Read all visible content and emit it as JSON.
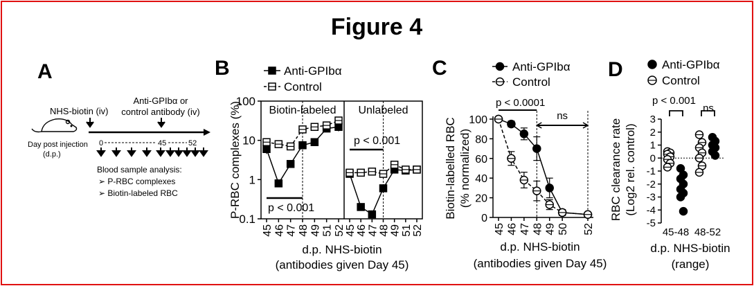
{
  "figure_title": "Figure 4",
  "panel_a": {
    "letter": "A",
    "nhs_label": "NHS-biotin (iv)",
    "antibody_label_1": "Anti-GPIbα or",
    "antibody_label_2": "control antibody (iv)",
    "day_label": "Day post injection",
    "day_label_abbrev": "(d.p.)",
    "tick_0": "0",
    "tick_45": "45",
    "tick_52": "52",
    "analysis_title": "Blood sample analysis:",
    "analysis_item_1": "➢ P-RBC complexes",
    "analysis_item_2": "➢ Biotin-labeled RBC"
  },
  "chart_data": [
    {
      "panel": "B",
      "type": "line",
      "ylabel": "P-RBC complexes (%)",
      "xlabel": "d.p. NHS-biotin",
      "xlabel_sub": "(antibodies given Day 45)",
      "yscale": "log",
      "ylim": [
        0.1,
        100
      ],
      "yticks": [
        "0.1",
        "1",
        "10",
        "100"
      ],
      "legend": [
        "Anti-GPIbα",
        "Control"
      ],
      "subpanels": [
        {
          "title": "Biotin-labeled",
          "categories": [
            "45",
            "46",
            "47",
            "48",
            "49",
            "51",
            "52"
          ],
          "series": [
            {
              "name": "Anti-GPIbα",
              "values": [
                6,
                0.8,
                2.5,
                7.5,
                9,
                20,
                22
              ],
              "errors": [
                1.5,
                0.1,
                0.5,
                1,
                1.5,
                3,
                5
              ]
            },
            {
              "name": "Control",
              "values": [
                9,
                8,
                7,
                19,
                22,
                24,
                32
              ],
              "errors": [
                1.5,
                1,
                1,
                3,
                3,
                3,
                6
              ]
            }
          ],
          "annotation": "p < 0.001"
        },
        {
          "title": "Unlabeled",
          "categories": [
            "45",
            "46",
            "47",
            "48",
            "49",
            "51",
            "52"
          ],
          "series": [
            {
              "name": "Anti-GPIbα",
              "values": [
                1.4,
                0.2,
                0.13,
                0.6,
                1.8,
                1.7,
                1.8
              ],
              "errors": [
                0.2,
                0.03,
                0.02,
                0.1,
                0.3,
                0.2,
                0.3
              ]
            },
            {
              "name": "Control",
              "values": [
                1.5,
                1.5,
                1.6,
                1.4,
                2.4,
                1.8,
                1.8
              ],
              "errors": [
                0.2,
                0.2,
                0.2,
                0.3,
                0.3,
                0.2,
                0.3
              ]
            }
          ],
          "annotation": "p < 0.001"
        }
      ]
    },
    {
      "panel": "C",
      "type": "line",
      "ylabel": "Biotin-labelled RBC",
      "ylabel_sub": "(% normalized)",
      "xlabel": "d.p. NHS-biotin",
      "xlabel_sub": "(antibodies given Day 45)",
      "ylim": [
        0,
        100
      ],
      "yticks": [
        "0",
        "20",
        "40",
        "60",
        "80",
        "100"
      ],
      "categories": [
        "45",
        "46",
        "47",
        "48",
        "49",
        "50",
        "52"
      ],
      "x": [
        45,
        46,
        47,
        48,
        49,
        50,
        52
      ],
      "legend": [
        "Anti-GPIbα",
        "Control"
      ],
      "series": [
        {
          "name": "Anti-GPIbα",
          "x": [
            45,
            46,
            47,
            48,
            49,
            50,
            52
          ],
          "values": [
            100,
            95,
            85,
            70,
            30,
            5,
            3
          ],
          "errors": [
            0,
            3,
            6,
            12,
            10,
            3,
            2
          ]
        },
        {
          "name": "Control",
          "x": [
            45,
            46,
            47,
            48,
            49,
            50,
            52
          ],
          "values": [
            100,
            60,
            38,
            27,
            13,
            5,
            3
          ],
          "errors": [
            0,
            7,
            8,
            10,
            5,
            3,
            2
          ]
        }
      ],
      "annotations": [
        "p < 0.0001",
        "ns"
      ]
    },
    {
      "panel": "D",
      "type": "scatter",
      "ylabel": "RBC clearance rate",
      "ylabel_sub": "(Log2 rel. control)",
      "xlabel": "d.p. NHS-biotin",
      "xlabel_sub": "(range)",
      "ylim": [
        -5,
        3
      ],
      "yticks": [
        "-5",
        "-4",
        "-3",
        "-2",
        "-1",
        "0",
        "1",
        "2",
        "3"
      ],
      "categories": [
        "45-48",
        "48-52"
      ],
      "legend": [
        "Anti-GPIbα",
        "Control"
      ],
      "series": [
        {
          "name": "Anti-GPIbα",
          "points": [
            {
              "x": "45-48",
              "y": -0.8
            },
            {
              "x": "45-48",
              "y": -1.3
            },
            {
              "x": "45-48",
              "y": -1.6
            },
            {
              "x": "45-48",
              "y": -2.0
            },
            {
              "x": "45-48",
              "y": -2.4
            },
            {
              "x": "45-48",
              "y": -2.7
            },
            {
              "x": "45-48",
              "y": -3.0
            },
            {
              "x": "45-48",
              "y": -4.1
            },
            {
              "x": "48-52",
              "y": 1.6
            },
            {
              "x": "48-52",
              "y": 1.3
            },
            {
              "x": "48-52",
              "y": 1.0
            },
            {
              "x": "48-52",
              "y": 0.8
            },
            {
              "x": "48-52",
              "y": 0.5
            },
            {
              "x": "48-52",
              "y": 0.2
            }
          ]
        },
        {
          "name": "Control",
          "points": [
            {
              "x": "45-48",
              "y": 0.5
            },
            {
              "x": "45-48",
              "y": 0.4
            },
            {
              "x": "45-48",
              "y": 0.3
            },
            {
              "x": "45-48",
              "y": 0.1
            },
            {
              "x": "45-48",
              "y": -0.1
            },
            {
              "x": "45-48",
              "y": -0.4
            },
            {
              "x": "45-48",
              "y": -0.7
            },
            {
              "x": "48-52",
              "y": 1.8
            },
            {
              "x": "48-52",
              "y": 1.2
            },
            {
              "x": "48-52",
              "y": 0.8
            },
            {
              "x": "48-52",
              "y": 0.4
            },
            {
              "x": "48-52",
              "y": 0.0
            },
            {
              "x": "48-52",
              "y": -0.6
            },
            {
              "x": "48-52",
              "y": -1.1
            }
          ]
        }
      ],
      "annotations": [
        "p < 0.001",
        "ns"
      ]
    }
  ],
  "panel_letters": {
    "b": "B",
    "c": "C",
    "d": "D"
  }
}
